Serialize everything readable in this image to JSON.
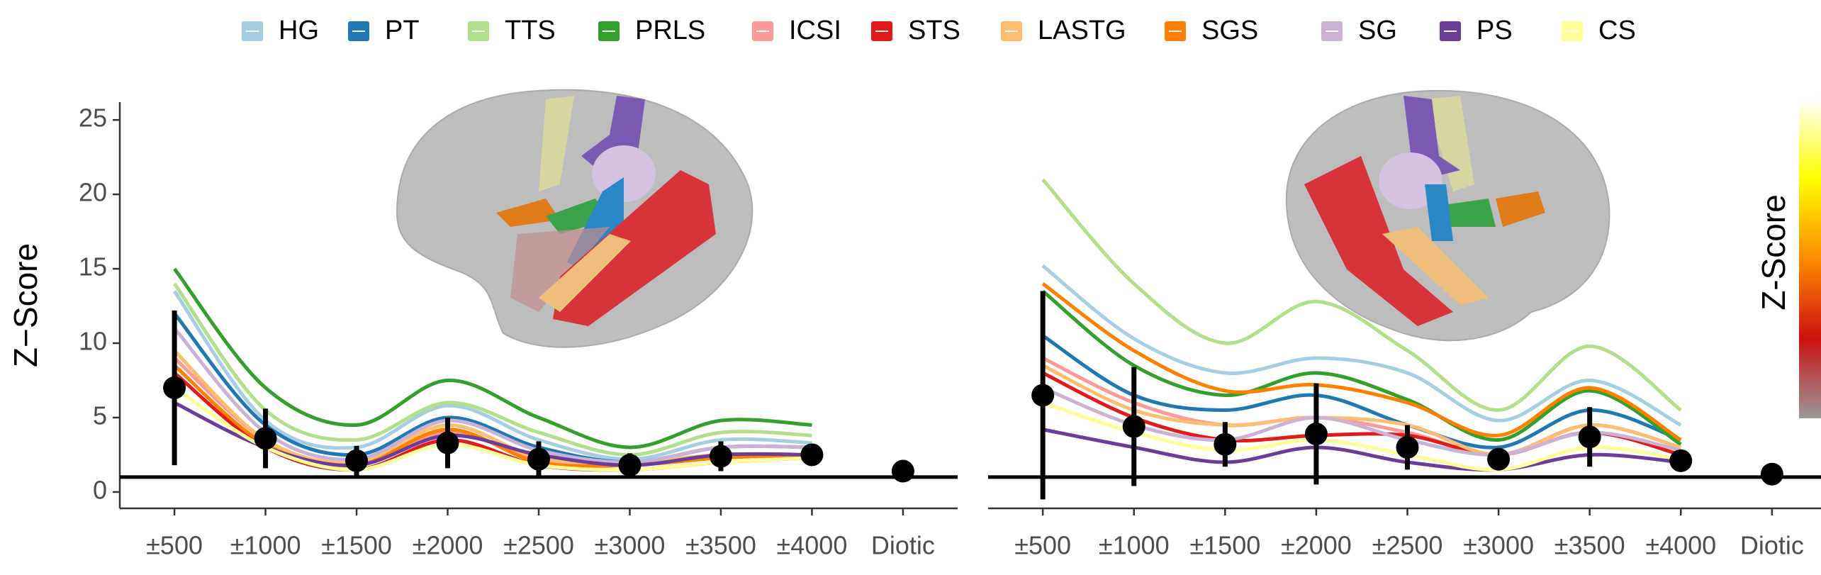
{
  "chart_data": [
    {
      "type": "line",
      "ylabel": "Z−Score",
      "categories": [
        "±500",
        "±1000",
        "±1500",
        "±2000",
        "±2500",
        "±3000",
        "±3500",
        "±4000",
        "Diotic"
      ],
      "ylim": [
        -1.1,
        26.2
      ],
      "yticks": [
        0,
        5,
        10,
        15,
        20,
        25
      ],
      "hline": 1,
      "series": [
        {
          "name": "HG",
          "color": "#a6cee3",
          "values": [
            13.5,
            4.8,
            3.0,
            5.8,
            3.5,
            2.2,
            3.5,
            3.3,
            null
          ]
        },
        {
          "name": "PT",
          "color": "#1f78b4",
          "values": [
            12,
            4.5,
            2.5,
            5,
            3,
            2,
            3,
            3,
            null
          ]
        },
        {
          "name": "TTS",
          "color": "#b2df8a",
          "values": [
            14,
            5.5,
            3.5,
            6,
            4,
            2.5,
            4,
            3.8,
            null
          ]
        },
        {
          "name": "PRLS",
          "color": "#33a02c",
          "values": [
            15,
            7,
            4.5,
            7.5,
            5,
            3,
            4.8,
            4.5,
            null
          ]
        },
        {
          "name": "ICSI",
          "color": "#fb9a99",
          "values": [
            9,
            3.5,
            1.8,
            4,
            2.2,
            1.8,
            2.5,
            2.5,
            null
          ]
        },
        {
          "name": "STS",
          "color": "#e31a1c",
          "values": [
            8,
            3,
            1.5,
            3.5,
            1.8,
            1.5,
            2,
            2.3,
            null
          ]
        },
        {
          "name": "LASTG",
          "color": "#fdbf6f",
          "values": [
            9.5,
            3.5,
            2,
            4.5,
            2.3,
            2,
            2.5,
            2.5,
            null
          ]
        },
        {
          "name": "SGS",
          "color": "#ff7f00",
          "values": [
            8.5,
            3.2,
            1.8,
            4.2,
            2,
            1.8,
            2.3,
            2.5,
            null
          ]
        },
        {
          "name": "SG",
          "color": "#cab2d6",
          "values": [
            11,
            4,
            2.2,
            4.8,
            2.8,
            2,
            3,
            3,
            null
          ]
        },
        {
          "name": "PS",
          "color": "#6a3d9a",
          "values": [
            6,
            3,
            1.8,
            3.8,
            2.5,
            1.8,
            2.5,
            2.5,
            null
          ]
        },
        {
          "name": "CS",
          "color": "#ffff99",
          "values": [
            7,
            3,
            1.5,
            3.2,
            1.8,
            1.5,
            2,
            2.3,
            null
          ]
        }
      ],
      "mean": {
        "color": "#000000",
        "values": [
          7,
          3.6,
          2.1,
          3.3,
          2.2,
          1.8,
          2.4,
          2.5,
          1.4
        ],
        "errors": [
          5.2,
          2,
          1,
          1.7,
          1.2,
          0.8,
          1,
          0.7,
          0.4
        ]
      }
    },
    {
      "type": "line",
      "categories": [
        "±500",
        "±1000",
        "±1500",
        "±2000",
        "±2500",
        "±3000",
        "±3500",
        "±4000",
        "Diotic"
      ],
      "ylim": [
        -1.1,
        26.2
      ],
      "hline": 1,
      "series": [
        {
          "name": "HG",
          "color": "#a6cee3",
          "values": [
            15.2,
            10.3,
            8,
            9,
            8,
            4.8,
            7.5,
            4.5,
            null
          ]
        },
        {
          "name": "PT",
          "color": "#1f78b4",
          "values": [
            10.5,
            6.5,
            5.5,
            6.5,
            4.5,
            3,
            5.5,
            3.5,
            null
          ]
        },
        {
          "name": "TTS",
          "color": "#b2df8a",
          "values": [
            21,
            14,
            10,
            12.8,
            9.5,
            5.5,
            9.8,
            5.5,
            null
          ]
        },
        {
          "name": "PRLS",
          "color": "#33a02c",
          "values": [
            13.5,
            8.5,
            6.5,
            8,
            6.2,
            3.5,
            6.8,
            3.2,
            null
          ]
        },
        {
          "name": "ICSI",
          "color": "#fb9a99",
          "values": [
            9,
            6,
            4.5,
            5,
            4,
            2.5,
            4.5,
            3,
            null
          ]
        },
        {
          "name": "STS",
          "color": "#e31a1c",
          "values": [
            8,
            5,
            3.5,
            3.8,
            3.8,
            2.5,
            4,
            2.5,
            null
          ]
        },
        {
          "name": "LASTG",
          "color": "#fdbf6f",
          "values": [
            8.5,
            5.5,
            4.5,
            5,
            4.5,
            2.5,
            4.5,
            3,
            null
          ]
        },
        {
          "name": "SGS",
          "color": "#ff7f00",
          "values": [
            14,
            9.5,
            6.8,
            7.2,
            6,
            3.8,
            7,
            3.5,
            null
          ]
        },
        {
          "name": "SG",
          "color": "#cab2d6",
          "values": [
            7,
            4.5,
            3.5,
            5,
            3.5,
            2.5,
            4,
            2.8,
            null
          ]
        },
        {
          "name": "PS",
          "color": "#6a3d9a",
          "values": [
            4.2,
            3,
            2,
            3,
            2,
            1.5,
            2.5,
            2,
            null
          ]
        },
        {
          "name": "CS",
          "color": "#ffff99",
          "values": [
            6,
            4,
            2.8,
            3.5,
            2.5,
            1.5,
            3,
            2.2,
            null
          ]
        }
      ],
      "mean": {
        "color": "#000000",
        "values": [
          6.5,
          4.4,
          3.2,
          3.9,
          3,
          2.2,
          3.7,
          2.1,
          1.2
        ],
        "errors": [
          7,
          4,
          1.5,
          3.4,
          1.5,
          0.7,
          2,
          0.6,
          0.3
        ]
      },
      "colorbar": {
        "label": "Z-Score",
        "colors": [
          "#999999",
          "#cc1010",
          "#ff8c00",
          "#ffff00",
          "#ffffff"
        ]
      }
    }
  ]
}
